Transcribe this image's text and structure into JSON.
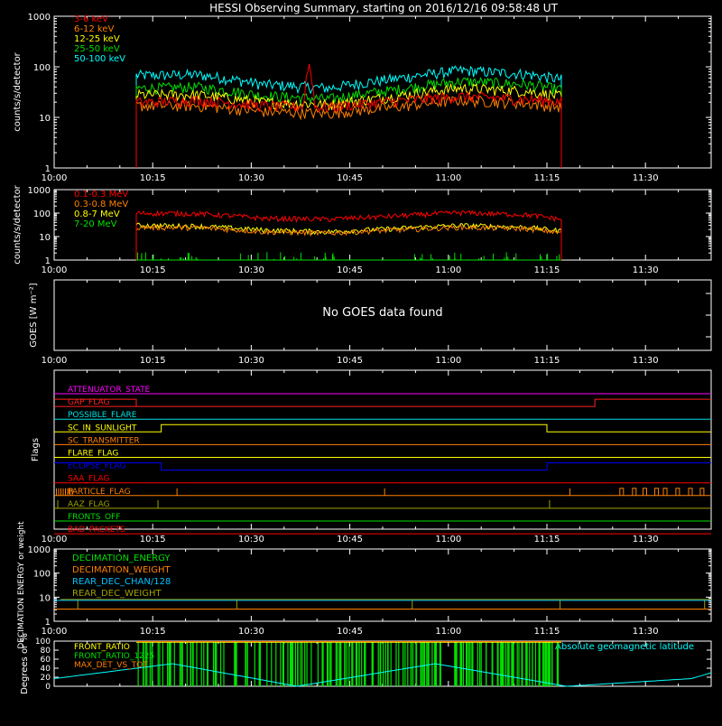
{
  "title": "HESSI Observing Summary, starting on 2016/12/16 09:58:48 UT",
  "time_ticks": [
    "10:00",
    "10:15",
    "10:30",
    "10:45",
    "11:00",
    "11:15",
    "11:30"
  ],
  "time_axis": {
    "start_min": 0,
    "end_min": 100,
    "tick_minutes": [
      0,
      15,
      30,
      45,
      60,
      75,
      90
    ],
    "data_start_min": 12.5,
    "data_end_min": 77.2
  },
  "chart_data": [
    {
      "type": "line",
      "ylabel": "counts/s/detector",
      "yscale": "log",
      "ylim": [
        1,
        1000
      ],
      "yticks": [
        "1",
        "10",
        "100",
        "1000"
      ],
      "x": [
        "10:12",
        "10:20",
        "10:30",
        "10:40",
        "10:50",
        "11:00",
        "11:10",
        "11:17"
      ],
      "series": [
        {
          "name": "3-6 keV",
          "color": "#ff0000",
          "values": [
            20,
            22,
            17,
            16,
            21,
            26,
            23,
            20
          ],
          "spike": {
            "x": "10:37",
            "value": 110
          }
        },
        {
          "name": "6-12 keV",
          "color": "#ff8000",
          "values": [
            17,
            17,
            13,
            12,
            16,
            22,
            19,
            15
          ]
        },
        {
          "name": "12-25 keV",
          "color": "#ffff00",
          "values": [
            28,
            28,
            20,
            18,
            26,
            38,
            33,
            24
          ]
        },
        {
          "name": "25-50 keV",
          "color": "#00e000",
          "values": [
            38,
            40,
            27,
            23,
            35,
            52,
            45,
            33
          ]
        },
        {
          "name": "50-100 keV",
          "color": "#00ffff",
          "values": [
            68,
            70,
            45,
            38,
            58,
            85,
            72,
            52
          ]
        }
      ]
    },
    {
      "type": "line",
      "ylabel": "counts/s/detector",
      "yscale": "log",
      "ylim": [
        1,
        1000
      ],
      "yticks": [
        "1",
        "10",
        "100",
        "1000"
      ],
      "x": [
        "10:12",
        "10:20",
        "10:30",
        "10:40",
        "10:50",
        "11:00",
        "11:10",
        "11:17"
      ],
      "series": [
        {
          "name": "0.1-0.3 MeV",
          "color": "#ff0000",
          "values": [
            100,
            95,
            60,
            55,
            75,
            105,
            85,
            45
          ]
        },
        {
          "name": "0.3-0.8 MeV",
          "color": "#ff8000",
          "values": [
            25,
            24,
            16,
            14,
            19,
            25,
            22,
            12
          ]
        },
        {
          "name": "0.8-7 MeV",
          "color": "#ffff00",
          "values": [
            30,
            28,
            19,
            16,
            22,
            30,
            25,
            15
          ]
        },
        {
          "name": "7-20 MeV",
          "color": "#00e000",
          "values": [
            1,
            1,
            1,
            1,
            1,
            1,
            1,
            1
          ]
        }
      ]
    },
    {
      "type": "line",
      "ylabel": "GOES [W m⁻²]",
      "message": "No GOES data found"
    },
    {
      "type": "line",
      "ylabel": "Flags",
      "flags": [
        {
          "name": "ATTENUATOR_STATE",
          "color": "#ff00ff"
        },
        {
          "name": "GAP_FLAG",
          "color": "#ff2020"
        },
        {
          "name": "POSSIBLE_FLARE",
          "color": "#00e0e0"
        },
        {
          "name": "SC_IN_SUNLIGHT",
          "color": "#ffff00"
        },
        {
          "name": "SC_TRANSMITTER",
          "color": "#ff8000"
        },
        {
          "name": "FLARE_FLAG",
          "color": "#ffff00"
        },
        {
          "name": "ECLIPSE_FLAG",
          "color": "#0000ff"
        },
        {
          "name": "SAA_FLAG",
          "color": "#ff0000"
        },
        {
          "name": "PARTICLE_FLAG",
          "color": "#ff8000"
        },
        {
          "name": "AAZ_FLAG",
          "color": "#a0a000"
        },
        {
          "name": "FRONTS_OFF",
          "color": "#00e000"
        },
        {
          "name": "BAD_PACKETS",
          "color": "#ff0000"
        }
      ]
    },
    {
      "type": "line",
      "ylabel": "DECIMATION ENERGY or weight",
      "yscale": "log",
      "ylim": [
        1,
        1000
      ],
      "yticks": [
        "1",
        "10",
        "100",
        "1000"
      ],
      "series": [
        {
          "name": "DECIMATION_ENERGY",
          "color": "#00e000"
        },
        {
          "name": "DECIMATION_WEIGHT",
          "color": "#ff8000"
        },
        {
          "name": "REAR_DEC_CHAN/128",
          "color": "#00c0ff"
        },
        {
          "name": "REAR_DEC_WEIGHT",
          "color": "#a0a000"
        }
      ]
    },
    {
      "type": "line",
      "ylabel": "Degrees or %",
      "ylim": [
        0,
        100
      ],
      "yticks": [
        "0",
        "20",
        "40",
        "60",
        "80",
        "100"
      ],
      "annotation": "Absolute geomagnetic latitude",
      "series": [
        {
          "name": "FRONT_RATIO",
          "color": "#ffff00"
        },
        {
          "name": "FRONT_RATIO_1225",
          "color": "#00e000"
        },
        {
          "name": "MAX_DET_VS_TOT",
          "color": "#ff8000"
        },
        {
          "name": "Absolute geomagnetic latitude",
          "color": "#00ffff",
          "x": [
            "10:00",
            "10:18",
            "10:37",
            "10:58",
            "11:18",
            "11:37",
            "11:40"
          ],
          "values": [
            17,
            50,
            0,
            50,
            0,
            17,
            30
          ]
        }
      ]
    }
  ]
}
